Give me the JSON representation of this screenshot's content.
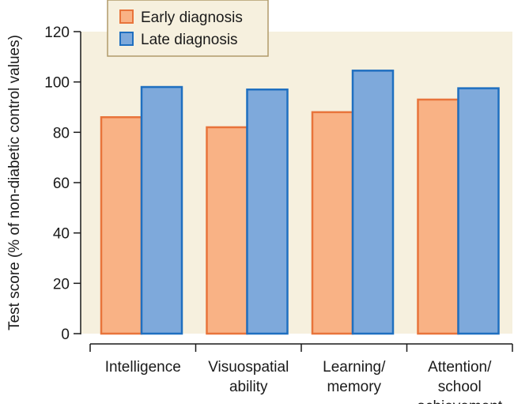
{
  "chart_data": {
    "type": "bar",
    "title": "",
    "xlabel": "",
    "ylabel": "Test score (% of non-diabetic control values)",
    "ylim": [
      0,
      120
    ],
    "yticks": [
      0,
      20,
      40,
      60,
      80,
      100,
      120
    ],
    "categories": [
      [
        "Intelligence"
      ],
      [
        "Visuospatial",
        "ability"
      ],
      [
        "Learning/",
        "memory"
      ],
      [
        "Attention/",
        "school",
        "achievement"
      ]
    ],
    "series": [
      {
        "name": "Early diagnosis",
        "fill": "#f9b285",
        "stroke": "#e8743b",
        "values": [
          86,
          82,
          88,
          93
        ]
      },
      {
        "name": "Late diagnosis",
        "fill": "#7ea9db",
        "stroke": "#1f6fc0",
        "values": [
          98,
          97,
          104.5,
          97.5
        ]
      }
    ],
    "grid": false,
    "legend": {
      "placement": "top-left",
      "background": "#f6f0de",
      "border": "#b09a6a"
    },
    "plot_background": "#f6f0de"
  }
}
